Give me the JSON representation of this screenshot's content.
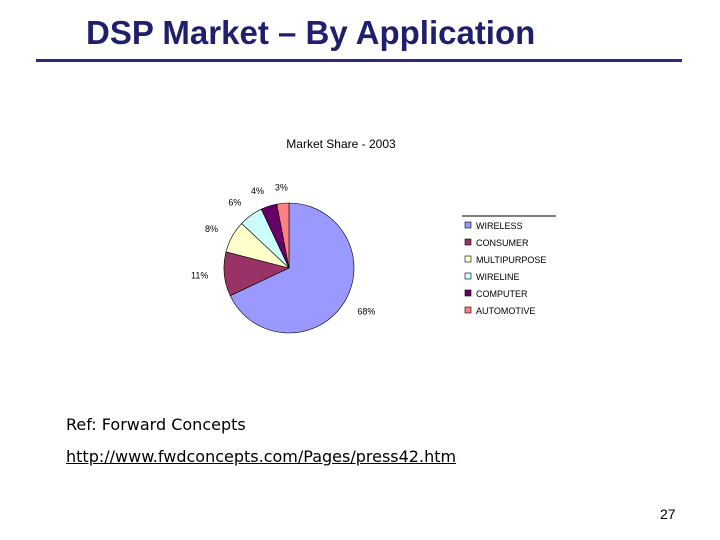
{
  "slide": {
    "title": "DSP Market – By Application",
    "reference": "Ref: Forward Concepts",
    "link": "http://www.fwdconcepts.com/Pages/press42.htm",
    "page_number": "27"
  },
  "chart_data": {
    "type": "pie",
    "title": "Market Share - 2003",
    "legend_position": "right",
    "slices": [
      {
        "name": "WIRELESS",
        "value": 68,
        "label": "68%",
        "color": "#9999ff"
      },
      {
        "name": "CONSUMER",
        "value": 11,
        "label": "11%",
        "color": "#993366"
      },
      {
        "name": "MULTIPURPOSE",
        "value": 8,
        "label": "8%",
        "color": "#ffffcc"
      },
      {
        "name": "WIRELINE",
        "value": 6,
        "label": "6%",
        "color": "#ccffff"
      },
      {
        "name": "COMPUTER",
        "value": 4,
        "label": "4%",
        "color": "#660066"
      },
      {
        "name": "AUTOMOTIVE",
        "value": 3,
        "label": "3%",
        "color": "#ff8080"
      }
    ]
  }
}
